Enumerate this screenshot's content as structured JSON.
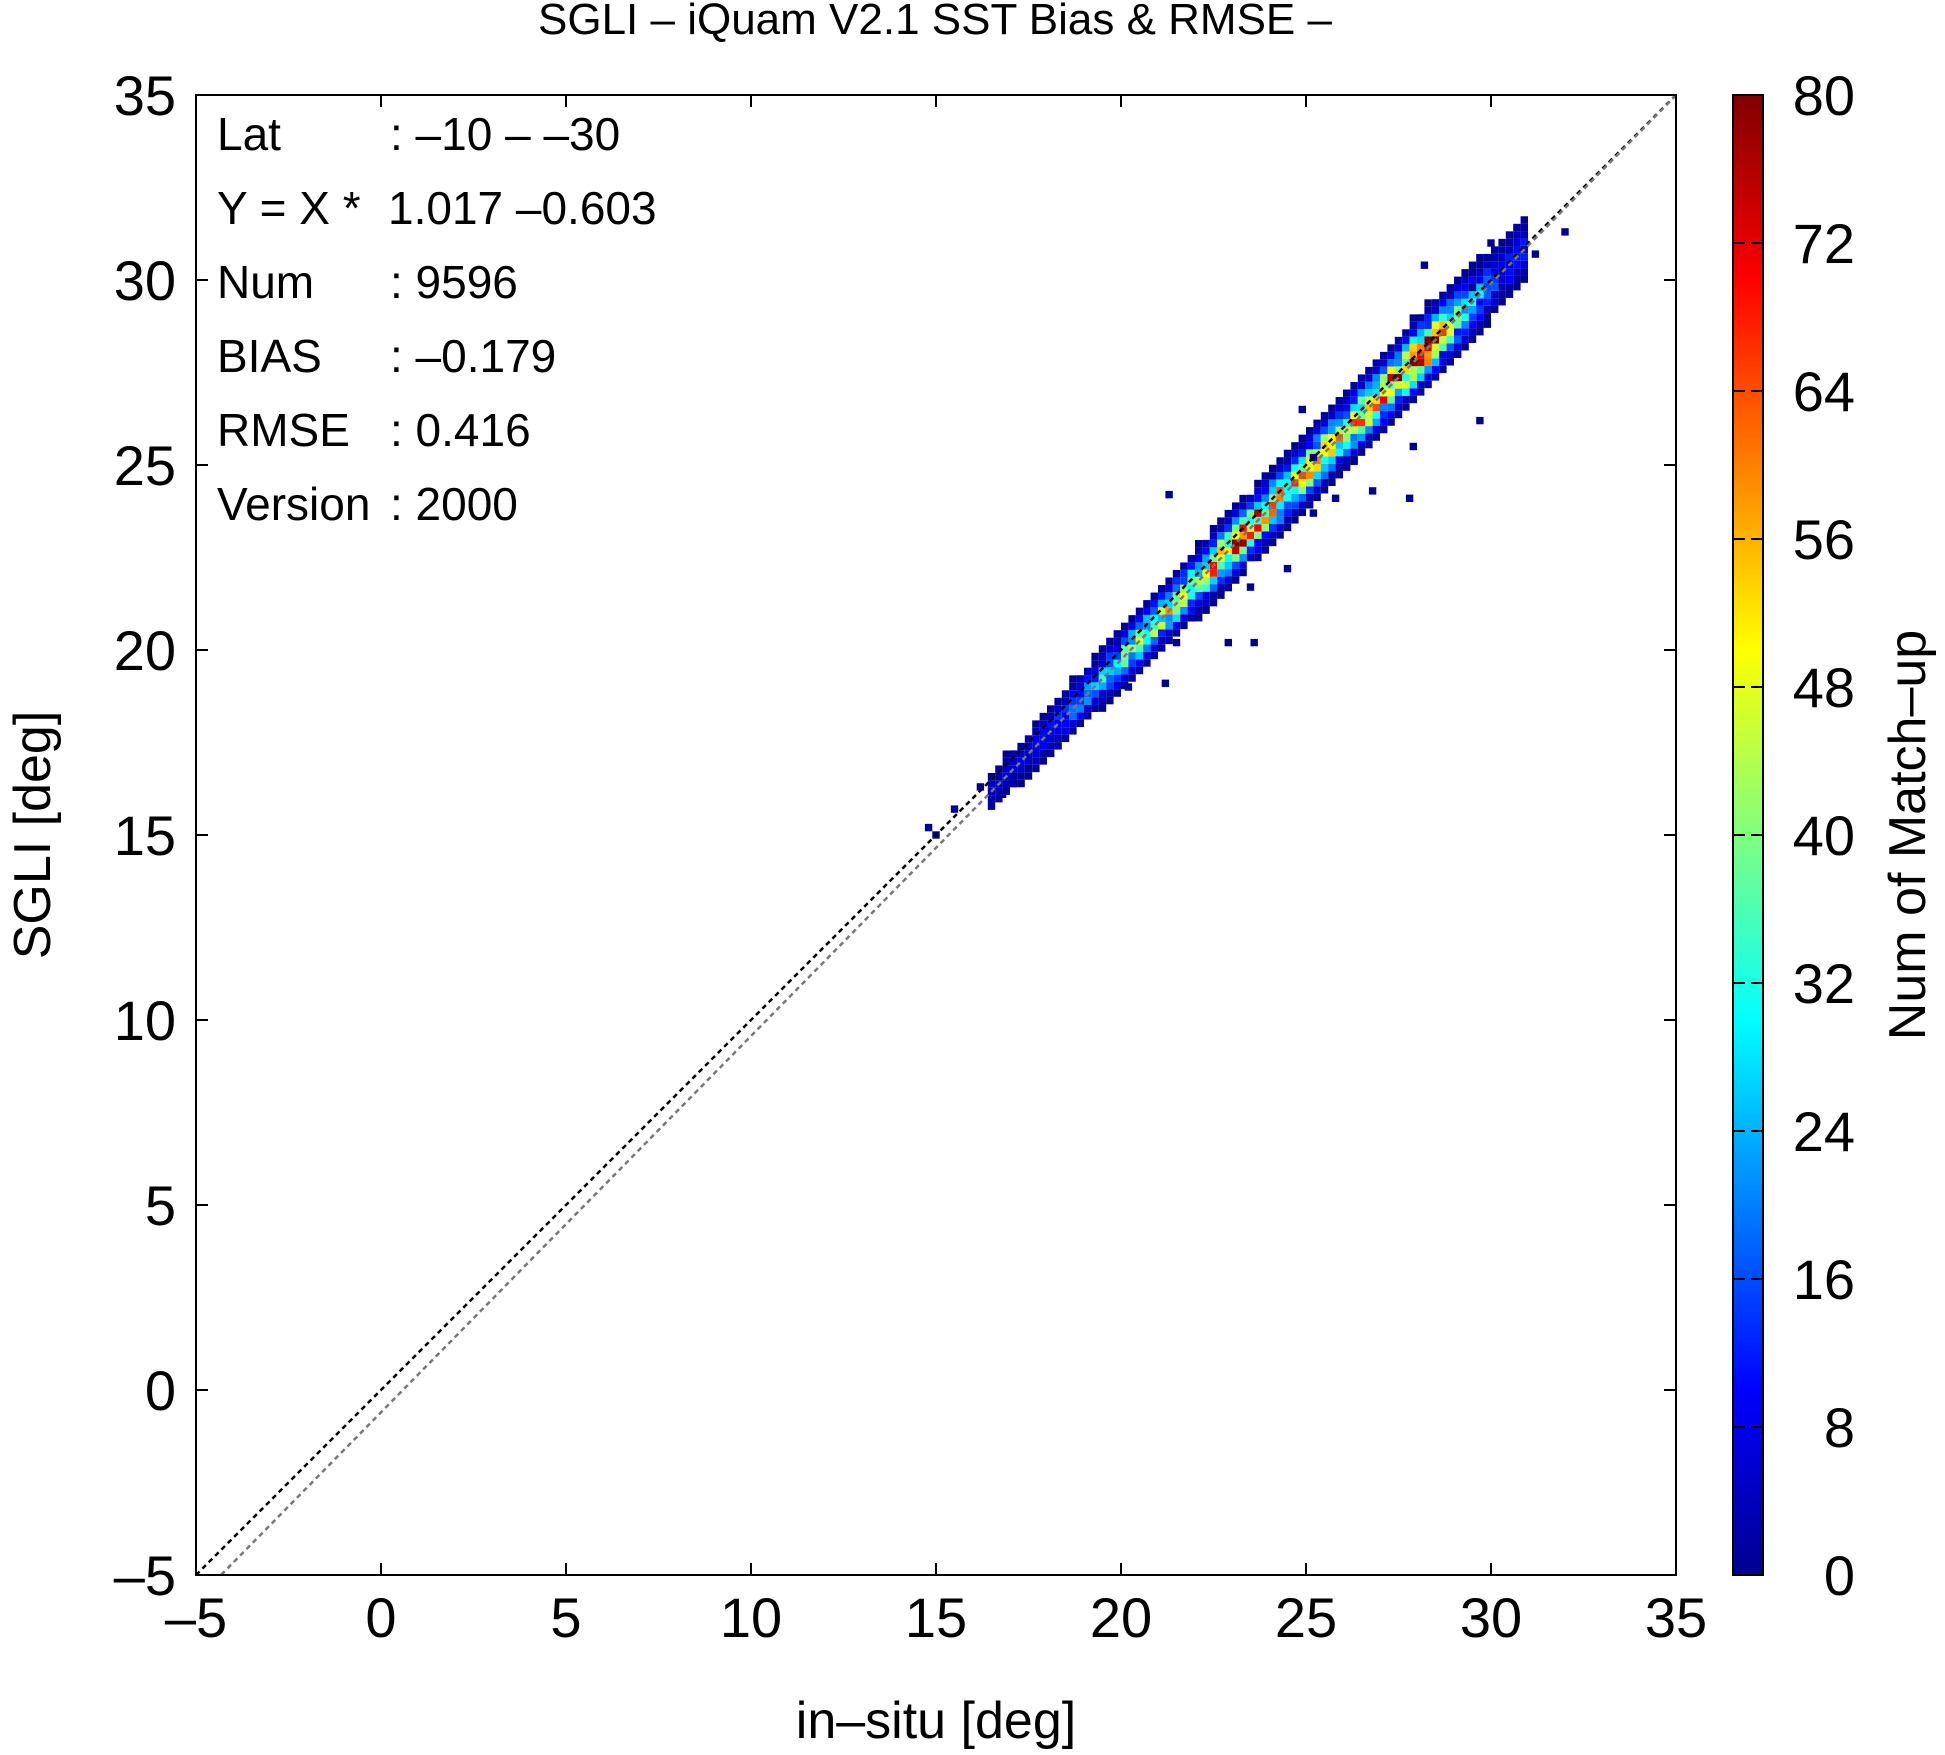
{
  "chart_data": {
    "type": "heatmap",
    "title": "SGLI – iQuam V2.1 SST Bias & RMSE  –",
    "xlabel": "in–situ [deg]",
    "ylabel": "SGLI [deg]",
    "xlim": [
      -5,
      35
    ],
    "ylim": [
      -5,
      35
    ],
    "x_ticks": [
      "–5",
      "0",
      "5",
      "10",
      "15",
      "20",
      "25",
      "30",
      "35"
    ],
    "y_ticks": [
      "–5",
      "0",
      "5",
      "10",
      "15",
      "20",
      "25",
      "30",
      "35"
    ],
    "stats": [
      {
        "label": "Lat",
        "value": ": –10 – –30"
      },
      {
        "label": "Y = X * ",
        "value": "1.017 –0.603"
      },
      {
        "label": "Num",
        "value": ": 9596"
      },
      {
        "label": "BIAS",
        "value": ": –0.179"
      },
      {
        "label": "RMSE",
        "value": ": 0.416"
      },
      {
        "label": "Version",
        "value": ": 2000"
      }
    ],
    "lines": [
      {
        "kind": "one-to-one",
        "slope": 1.0,
        "intercept": 0.0,
        "color": "#000000"
      },
      {
        "kind": "regression",
        "slope": 1.017,
        "intercept": -0.603,
        "color": "#777777"
      }
    ],
    "colorbar": {
      "label": "Num of Match–up",
      "range": [
        0,
        80
      ],
      "ticks": [
        "0",
        "8",
        "16",
        "24",
        "32",
        "40",
        "48",
        "56",
        "64",
        "72",
        "80"
      ],
      "colormap": "jet"
    },
    "density": {
      "bin_size": 0.2,
      "x_center_range": [
        16.5,
        31
      ],
      "core_points": [
        [
          17.5,
          6
        ],
        [
          19,
          18
        ],
        [
          20.5,
          38
        ],
        [
          22,
          46
        ],
        [
          23.2,
          68
        ],
        [
          24.5,
          52
        ],
        [
          26,
          50
        ],
        [
          27.3,
          60
        ],
        [
          28.2,
          74
        ],
        [
          29.2,
          30
        ],
        [
          30.3,
          10
        ]
      ],
      "scatter_points": [
        [
          15,
          15
        ],
        [
          14.8,
          15.2
        ],
        [
          15.5,
          15.7
        ],
        [
          16.2,
          16.3
        ],
        [
          16.8,
          16.1
        ],
        [
          20.2,
          19
        ],
        [
          21.2,
          19.1
        ],
        [
          21.5,
          20.2
        ],
        [
          22.9,
          20.2
        ],
        [
          23.6,
          20.2
        ],
        [
          21.3,
          24.2
        ],
        [
          25.2,
          23.7
        ],
        [
          25.8,
          24.1
        ],
        [
          26.8,
          24.3
        ],
        [
          27.8,
          24.1
        ],
        [
          27.9,
          25.5
        ],
        [
          29.7,
          26.2
        ],
        [
          29.5,
          29.8
        ],
        [
          28.2,
          30.4
        ],
        [
          30,
          31
        ],
        [
          31.2,
          30.7
        ],
        [
          32,
          31.3
        ],
        [
          24.9,
          26.5
        ],
        [
          26.3,
          25.1
        ],
        [
          24.5,
          22.2
        ],
        [
          25.2,
          25.2
        ],
        [
          23.5,
          21.7
        ],
        [
          22.7,
          21.6
        ]
      ]
    }
  }
}
